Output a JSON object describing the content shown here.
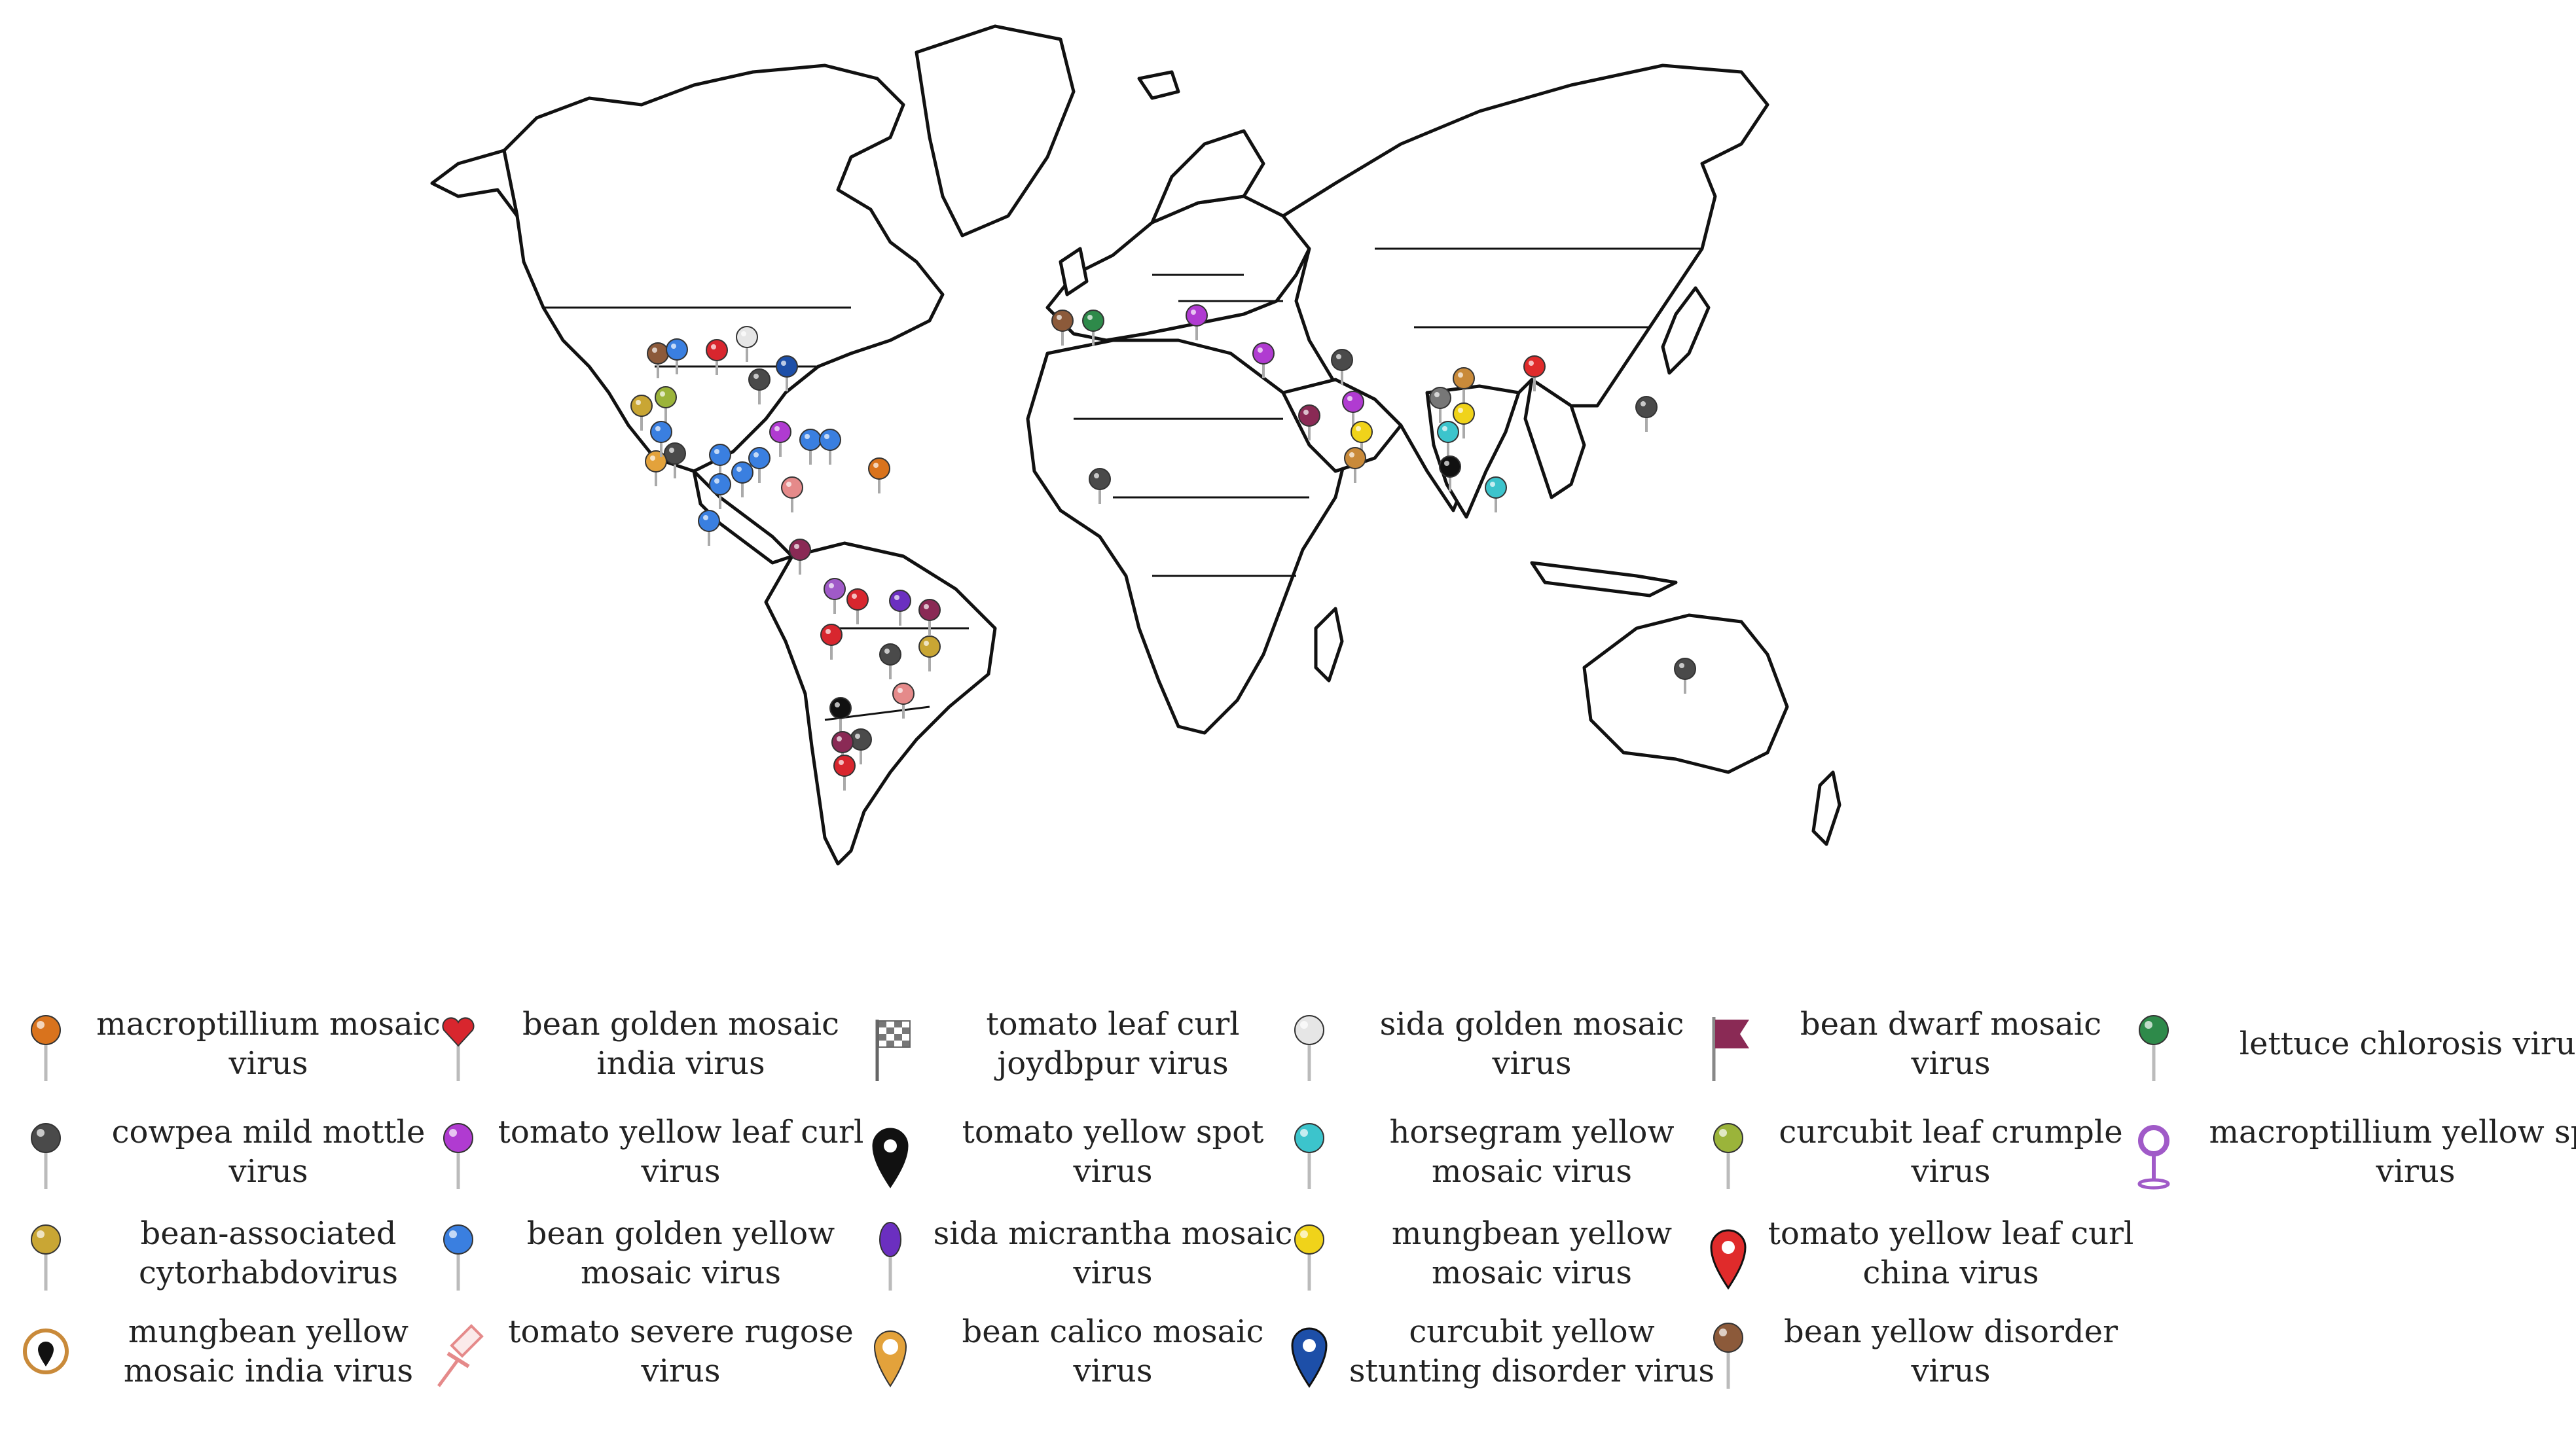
{
  "map": {
    "projection": "world outline map (equirectangular-style)",
    "land_fill": "#ffffff",
    "outline_color": "#111111"
  },
  "legend": [
    {
      "label": "macroptillium mosaic virus",
      "color": "#d9731d",
      "icon": "ball-pin-icon"
    },
    {
      "label": "cowpea mild mottle virus",
      "color": "#4a4a4a",
      "icon": "ball-pin-icon"
    },
    {
      "label": "bean-associated cytorhabdovirus",
      "color": "#c9a634",
      "icon": "ball-pin-icon"
    },
    {
      "label": "mungbean yellow mosaic india virus",
      "color": "#c98a3a",
      "icon": "circle-marker-icon"
    },
    {
      "label": "bean golden mosaic india virus",
      "color": "#d8262e",
      "icon": "heart-pin-icon"
    },
    {
      "label": "tomato yellow leaf curl virus",
      "color": "#b03bd1",
      "icon": "ball-pin-icon"
    },
    {
      "label": "bean golden yellow mosaic virus",
      "color": "#3a7fe0",
      "icon": "ball-pin-icon"
    },
    {
      "label": "tomato severe rugose virus",
      "color": "#e58a8a",
      "icon": "pushpin-icon"
    },
    {
      "label": "tomato leaf curl joydbpur virus",
      "color": "#777777",
      "icon": "checkered-flag-icon"
    },
    {
      "label": "tomato yellow spot virus",
      "color": "#111111",
      "icon": "map-marker-icon"
    },
    {
      "label": "sida micrantha mosaic virus",
      "color": "#6b2fc0",
      "icon": "oval-pin-icon"
    },
    {
      "label": "bean calico mosaic virus",
      "color": "#e3a23b",
      "icon": "ring-marker-icon"
    },
    {
      "label": "sida golden mosaic virus",
      "color": "#e6e6e6",
      "icon": "ball-pin-icon"
    },
    {
      "label": "horsegram yellow mosaic virus",
      "color": "#3cc4cc",
      "icon": "ball-pin-icon"
    },
    {
      "label": "mungbean yellow mosaic virus",
      "color": "#f0d31a",
      "icon": "ball-pin-icon"
    },
    {
      "label": "curcubit yellow stunting disorder virus",
      "color": "#1d4fa8",
      "icon": "map-marker-icon"
    },
    {
      "label": "bean dwarf mosaic virus",
      "color": "#8a2a55",
      "icon": "flag-icon"
    },
    {
      "label": "curcubit leaf crumple virus",
      "color": "#9bb43a",
      "icon": "ball-pin-icon"
    },
    {
      "label": "tomato yellow leaf curl china virus",
      "color": "#e02b2b",
      "icon": "map-marker-icon"
    },
    {
      "label": "bean yellow disorder virus",
      "color": "#8c5a3a",
      "icon": "ball-pin-icon"
    },
    {
      "label": "lettuce chlorosis virus",
      "color": "#2e8a4a",
      "icon": "ball-pin-icon"
    },
    {
      "label": "macroptillium yellow spot virus",
      "color": "#a05ac8",
      "icon": "ring-pin-icon"
    }
  ]
}
